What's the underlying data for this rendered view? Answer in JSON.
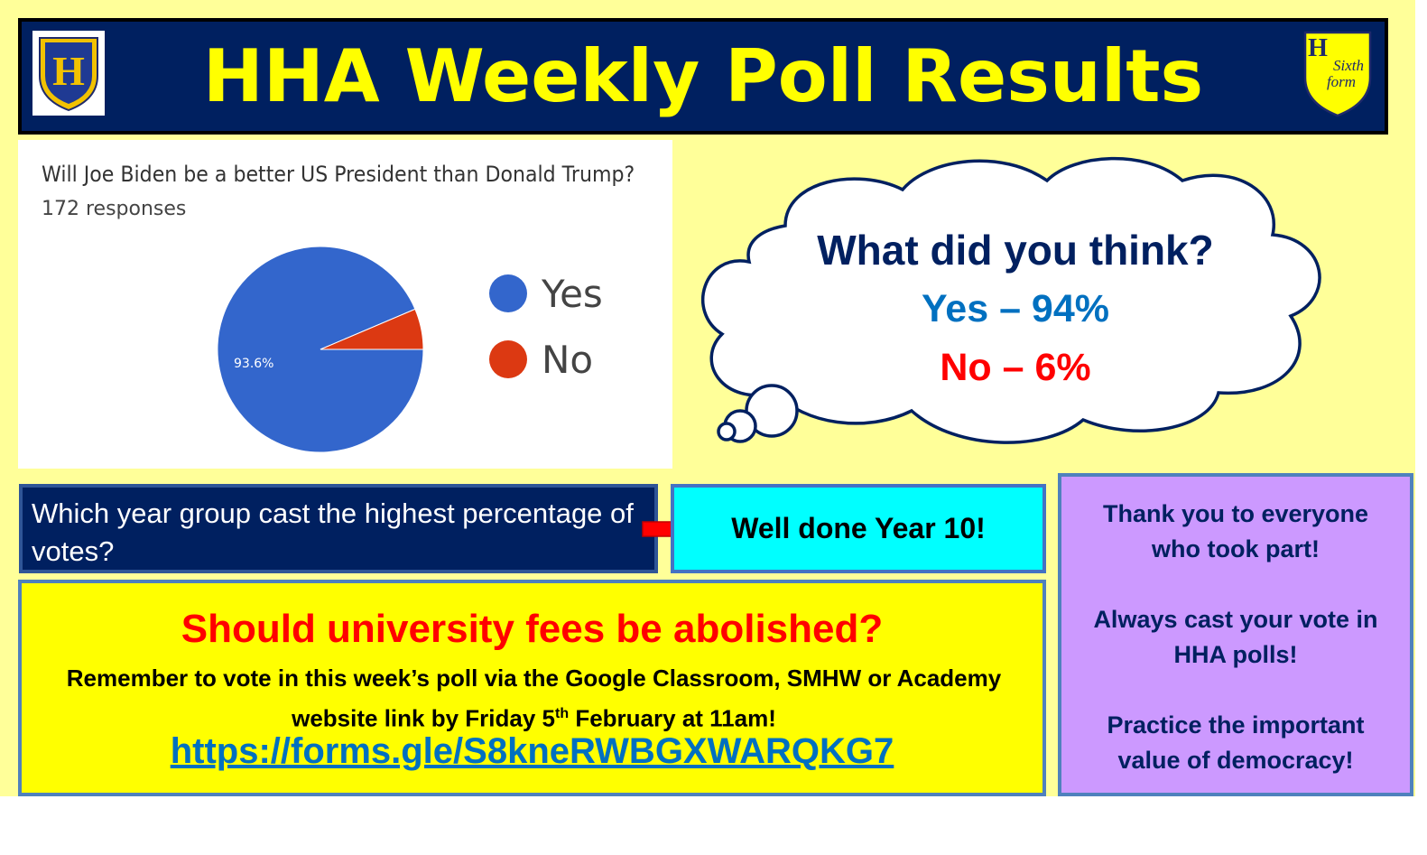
{
  "header": {
    "title": "HHA Weekly Poll Results",
    "logo_left_letter": "H",
    "logo_right_letter": "H",
    "logo_right_text_1": "Sixth",
    "logo_right_text_2": "form"
  },
  "chart_data": {
    "type": "pie",
    "title": "Will Joe Biden be a better US President than Donald Trump?",
    "subtitle": "172 responses",
    "categories": [
      "Yes",
      "No"
    ],
    "values": [
      93.6,
      6.4
    ],
    "labels": [
      "93.6%",
      ""
    ],
    "colors": [
      "#3366cc",
      "#dc3912"
    ],
    "legend_position": "right"
  },
  "cloud": {
    "heading": "What did you think?",
    "yes_result": "Yes – 94%",
    "no_result": "No – 6%"
  },
  "year_group": {
    "question": "Which year group cast the highest percentage of votes?",
    "answer": "Well done Year 10!"
  },
  "next_poll": {
    "question": "Should university fees be abolished?",
    "reminder_before": "Remember to vote in this week’s poll via the Google Classroom, SMHW or Academy website link by Friday 5",
    "reminder_sup": "th",
    "reminder_after": " February at 11am!",
    "link": "https://forms.gle/S8kneRWBGXWARQKG7"
  },
  "thanks": {
    "line1": "Thank you to everyone",
    "line2": "who took part!",
    "line3": "Always cast your vote in",
    "line4": "HHA polls!",
    "line5": "Practice the important",
    "line6": "value of democracy!"
  },
  "colors": {
    "background": "#ffff99",
    "header_bg": "#002060",
    "header_text": "#ffff00",
    "yes": "#0070c0",
    "no": "#ff0000"
  }
}
